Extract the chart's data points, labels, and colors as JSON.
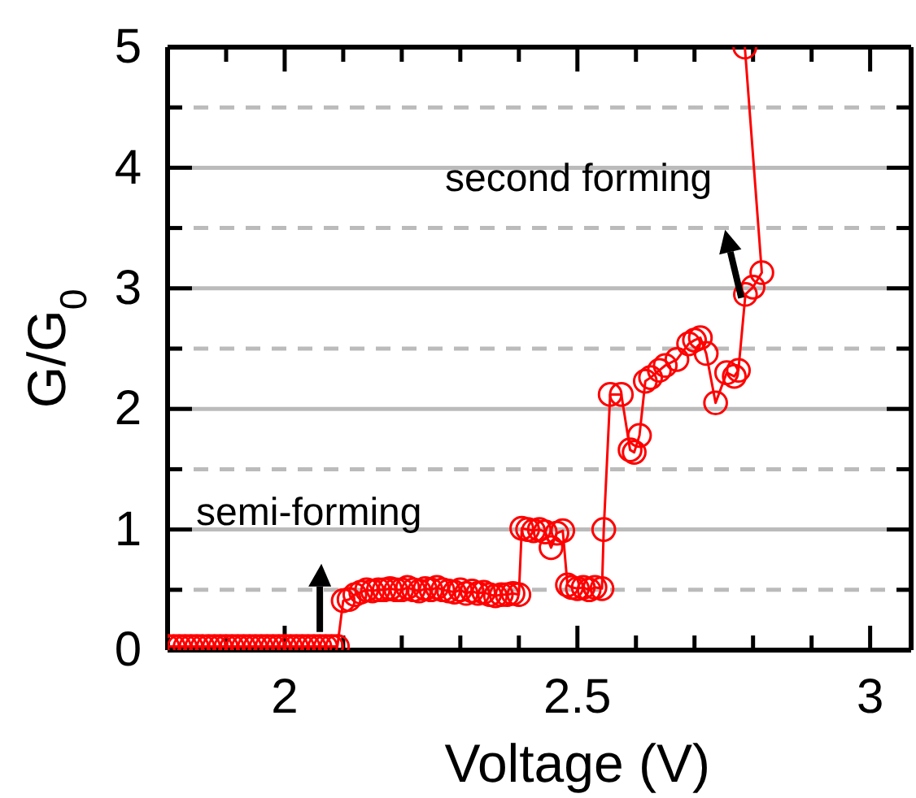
{
  "chart_data": {
    "type": "line",
    "xlabel": "Voltage (V)",
    "ylabel": "G/G$_{0}$",
    "xlim": [
      1.8,
      3.07
    ],
    "ylim": [
      0,
      5
    ],
    "xticks": [
      {
        "value": 1.9,
        "label": null
      },
      2,
      {
        "value": 2.1,
        "label": null
      },
      {
        "value": 2.2,
        "label": null
      },
      {
        "value": 2.3,
        "label": null
      },
      {
        "value": 2.4,
        "label": null
      },
      2.5,
      {
        "value": 2.6,
        "label": null
      },
      {
        "value": 2.7,
        "label": null
      },
      {
        "value": 2.8,
        "label": null
      },
      {
        "value": 2.9,
        "label": null
      },
      3
    ],
    "yticks": [
      0,
      {
        "value": 0.5,
        "label": null
      },
      1,
      {
        "value": 1.5,
        "label": null
      },
      2,
      {
        "value": 2.5,
        "label": null
      },
      3,
      {
        "value": 3.5,
        "label": null
      },
      4,
      {
        "value": 4.5,
        "label": null
      },
      5
    ],
    "grid": "y",
    "marker": "circle",
    "line_style": "solid",
    "series": [
      {
        "color": "#ff0000",
        "x": [
          1.8,
          1.81,
          1.82,
          1.83,
          1.84,
          1.85,
          1.86,
          1.87,
          1.88,
          1.89,
          1.9,
          1.91,
          1.92,
          1.93,
          1.94,
          1.95,
          1.96,
          1.97,
          1.98,
          1.99,
          2.0,
          2.01,
          2.02,
          2.03,
          2.04,
          2.05,
          2.06,
          2.07,
          2.08,
          2.09,
          2.1,
          2.11,
          2.12,
          2.13,
          2.14,
          2.15,
          2.16,
          2.17,
          2.18,
          2.19,
          2.2,
          2.21,
          2.22,
          2.23,
          2.24,
          2.25,
          2.26,
          2.27,
          2.28,
          2.29,
          2.3,
          2.31,
          2.32,
          2.33,
          2.34,
          2.35,
          2.36,
          2.37,
          2.38,
          2.39,
          2.4,
          2.405,
          2.415,
          2.425,
          2.435,
          2.445,
          2.455,
          2.465,
          2.475,
          2.483,
          2.49,
          2.5,
          2.51,
          2.52,
          2.53,
          2.542,
          2.545,
          2.556,
          2.575,
          2.59,
          2.597,
          2.606,
          2.616,
          2.625,
          2.64,
          2.65,
          2.67,
          2.69,
          2.7,
          2.71,
          2.72,
          2.736,
          2.755,
          2.768,
          2.775,
          2.787,
          2.8,
          2.815,
          2.786
        ],
        "values": [
          0.03,
          0.03,
          0.03,
          0.03,
          0.03,
          0.03,
          0.03,
          0.03,
          0.03,
          0.03,
          0.03,
          0.03,
          0.03,
          0.03,
          0.03,
          0.03,
          0.03,
          0.03,
          0.03,
          0.03,
          0.03,
          0.03,
          0.03,
          0.03,
          0.03,
          0.03,
          0.03,
          0.03,
          0.03,
          0.03,
          0.41,
          0.42,
          0.46,
          0.48,
          0.5,
          0.49,
          0.5,
          0.5,
          0.51,
          0.5,
          0.5,
          0.52,
          0.5,
          0.49,
          0.51,
          0.5,
          0.52,
          0.5,
          0.49,
          0.48,
          0.5,
          0.47,
          0.49,
          0.47,
          0.48,
          0.46,
          0.45,
          0.46,
          0.46,
          0.47,
          0.46,
          1.01,
          1.0,
          0.99,
          1.0,
          0.98,
          0.85,
          0.97,
          0.99,
          0.54,
          0.52,
          0.51,
          0.52,
          0.5,
          0.52,
          0.51,
          1.0,
          2.12,
          2.12,
          1.66,
          1.64,
          1.78,
          2.23,
          2.26,
          2.32,
          2.36,
          2.41,
          2.54,
          2.57,
          2.59,
          2.46,
          2.05,
          2.3,
          2.27,
          2.32,
          2.95,
          3.01,
          3.13,
          5.0
        ]
      }
    ],
    "annotations": [
      {
        "text": "semi-forming",
        "x": 2.06,
        "y": 0.15
      },
      {
        "text": "second forming",
        "x": 2.78,
        "y": 2.92
      }
    ]
  }
}
